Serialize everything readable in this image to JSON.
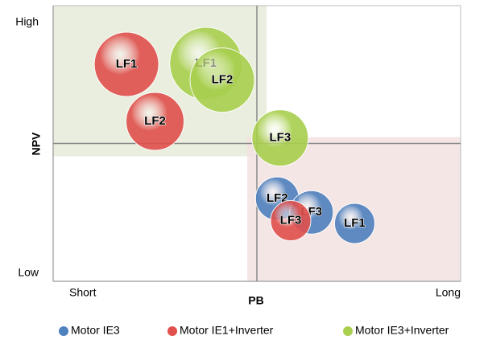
{
  "chart_data": {
    "type": "bubble",
    "xlabel": "PB",
    "ylabel": "NPV",
    "xlim": [
      0,
      100
    ],
    "ylim": [
      0,
      100
    ],
    "xticks": [
      {
        "value": 0,
        "label": "Short"
      },
      {
        "value": 100,
        "label": "Long"
      }
    ],
    "yticks": [
      {
        "value": 0,
        "label": "Low"
      },
      {
        "value": 100,
        "label": "High"
      }
    ],
    "dividers": {
      "x": 50,
      "y": 50
    },
    "legend": "bottom",
    "series": [
      {
        "name": "Motor IE3",
        "color": "#4f81bd",
        "labels": [
          "LF2",
          "LF3",
          "LF1"
        ],
        "x": [
          55,
          63.4,
          74
        ],
        "values": [
          30,
          25,
          21
        ],
        "sizes": [
          27,
          27,
          25
        ]
      },
      {
        "name": "Motor IE1+Inverter",
        "color": "#e0504c",
        "labels": [
          "LF1",
          "LF2",
          "LF3"
        ],
        "x": [
          18,
          25,
          58.3
        ],
        "values": [
          78.7,
          58,
          22
        ],
        "sizes": [
          40,
          36,
          25
        ]
      },
      {
        "name": "Motor IE3+Inverter",
        "color": "#a8cf4e",
        "labels": [
          "LF1",
          "LF2",
          "LF3"
        ],
        "x": [
          37.5,
          41.5,
          55.7
        ],
        "values": [
          79,
          73,
          52
        ],
        "sizes": [
          45,
          40,
          35
        ]
      }
    ]
  }
}
